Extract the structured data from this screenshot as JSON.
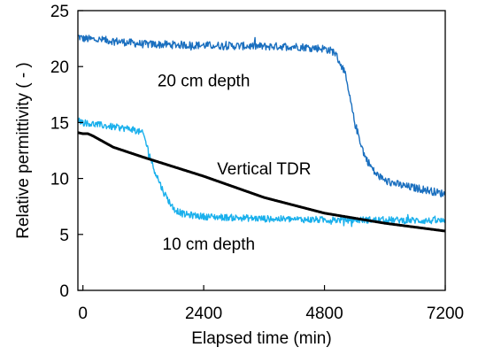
{
  "chart_data": {
    "type": "line",
    "xlabel": "Elapsed time (min)",
    "ylabel": "Relative permittivity ( - )",
    "xlim": [
      -100,
      7200
    ],
    "ylim": [
      0,
      25
    ],
    "xticks": [
      0,
      2400,
      4800,
      7200
    ],
    "yticks": [
      0,
      5,
      10,
      15,
      20,
      25
    ],
    "xtick_labels": [
      "0",
      "2400",
      "4800",
      "7200"
    ],
    "ytick_labels": [
      "0",
      "5",
      "10",
      "15",
      "20",
      "25"
    ],
    "grid": false,
    "legend": "none",
    "annotations": [
      {
        "text": "20 cm depth",
        "x": 2400,
        "y": 18.8
      },
      {
        "text": "Vertical TDR",
        "x": 3600,
        "y": 10.9
      },
      {
        "text": "10 cm depth",
        "x": 2500,
        "y": 4.2
      }
    ],
    "series": [
      {
        "color": "#1a6fbf",
        "noise": 0.35,
        "x": [
          -100,
          0,
          600,
          1200,
          2400,
          3600,
          4200,
          4800,
          5000,
          5200,
          5400,
          5600,
          5800,
          6000,
          6400,
          6800,
          7200
        ],
        "y": [
          22.7,
          22.5,
          22.3,
          22.0,
          21.9,
          21.8,
          21.8,
          21.6,
          21.3,
          19.5,
          15.0,
          12.0,
          10.5,
          9.8,
          9.3,
          9.0,
          8.6
        ]
      },
      {
        "color": "#1ab0ec",
        "noise": 0.3,
        "x": [
          -100,
          0,
          600,
          1000,
          1200,
          1400,
          1600,
          1800,
          2000,
          2400,
          3600,
          4800,
          6000,
          7200
        ],
        "y": [
          15.3,
          15.0,
          14.6,
          14.4,
          14.0,
          11.0,
          8.8,
          7.3,
          6.8,
          6.6,
          6.4,
          6.3,
          6.3,
          6.2
        ]
      },
      {
        "color": "#000000",
        "noise": 0,
        "x": [
          -100,
          0,
          100,
          200,
          400,
          600,
          1200,
          2400,
          3600,
          4800,
          6000,
          7200
        ],
        "y": [
          14.1,
          14.0,
          14.0,
          13.8,
          13.3,
          12.8,
          11.9,
          10.2,
          8.3,
          6.9,
          6.0,
          5.3
        ]
      }
    ]
  }
}
